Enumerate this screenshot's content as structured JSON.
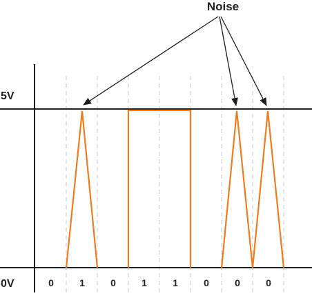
{
  "labels": {
    "noise": "Noise",
    "high_voltage": "5V",
    "low_voltage": "0V"
  },
  "bits": [
    "0",
    "1",
    "0",
    "1",
    "1",
    "0",
    "0",
    "0"
  ],
  "colors": {
    "signal": "#F07C1E",
    "axis": "#1f1f1f",
    "grid": "#c8c8c8",
    "text": "#222222"
  }
}
